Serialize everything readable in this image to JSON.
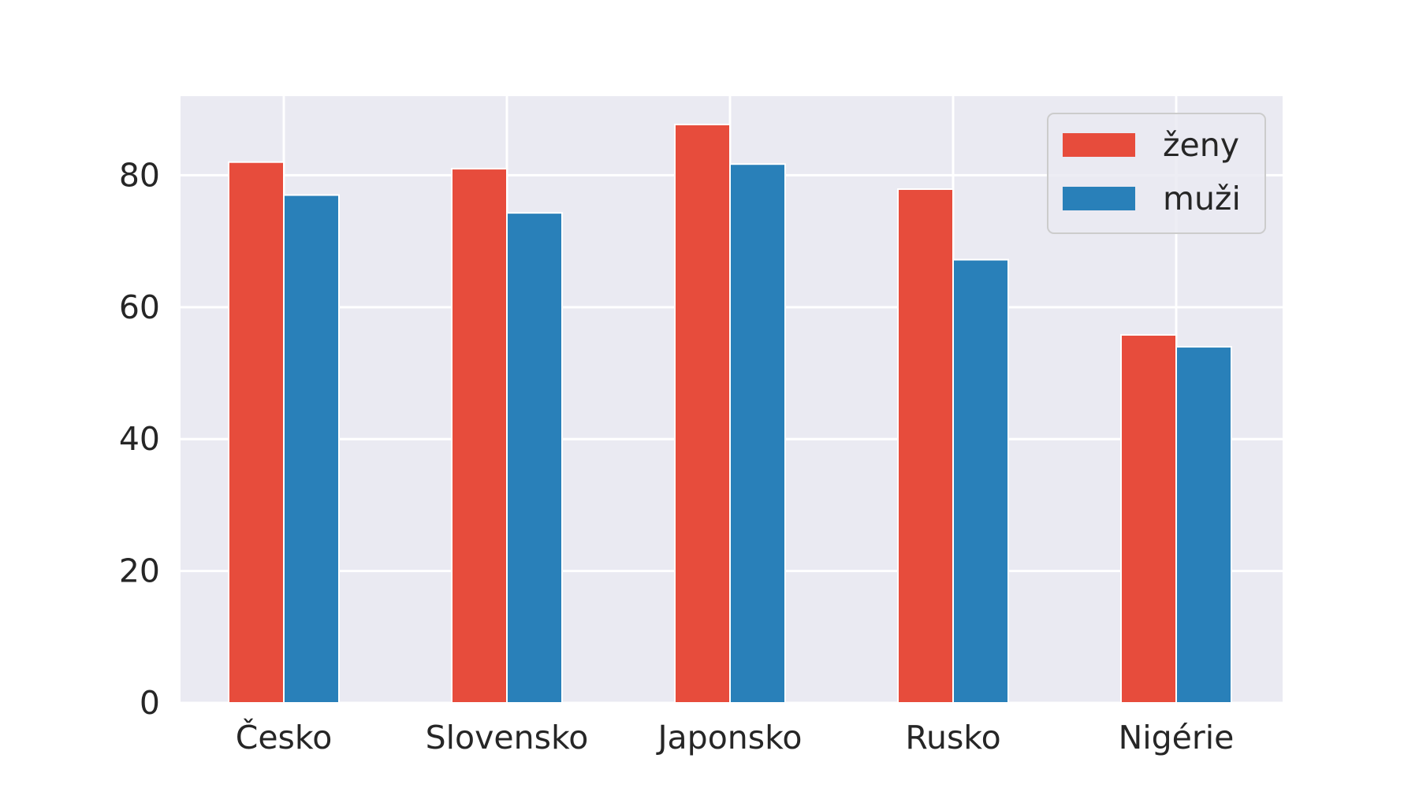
{
  "chart_data": {
    "type": "bar",
    "categories": [
      "Česko",
      "Slovensko",
      "Japonsko",
      "Rusko",
      "Nigérie"
    ],
    "series": [
      {
        "name": "ženy",
        "color": "#e74c3c",
        "values": [
          82.0,
          81.0,
          87.7,
          77.9,
          55.8
        ]
      },
      {
        "name": "muži",
        "color": "#2980b9",
        "values": [
          77.0,
          74.3,
          81.7,
          67.2,
          54.0
        ]
      }
    ],
    "yticks": [
      0,
      20,
      40,
      60,
      80
    ],
    "ylim": [
      0,
      92
    ],
    "grid": true,
    "legend_position": "top-right",
    "plot_background": "#eaeaf2",
    "grid_color": "#ffffff"
  }
}
